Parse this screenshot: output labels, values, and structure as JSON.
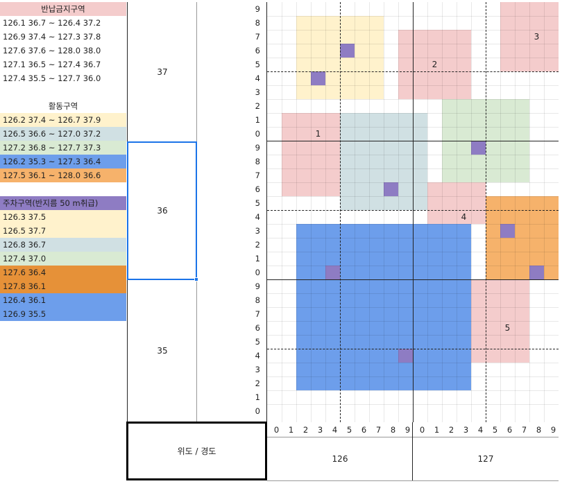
{
  "colors": {
    "forbidden_bg": "#f4cccc",
    "activity_1": "#fff2cc",
    "activity_2": "#d0e0e3",
    "activity_3": "#d9ead3",
    "activity_4": "#6d9eeb",
    "activity_5": "#f6b26b",
    "parking_header": "#8e7cc3",
    "parking_orange": "#e69138",
    "parking_blue": "#6d9eeb"
  },
  "sidebar": {
    "forbidden": {
      "header": "반납금지구역",
      "items": [
        "126.1 36.7 ~ 126.4 37.2",
        "126.9 37.4 ~ 127.3 37.8",
        "127.6 37.6 ~ 128.0 38.0",
        "127.1 36.5 ~ 127.4 36.7",
        "127.4 35.5 ~ 127.7 36.0"
      ]
    },
    "activity": {
      "header": "활동구역",
      "items": [
        "126.2 37.4 ~ 126.7 37.9",
        "126.5 36.6 ~ 127.0 37.2",
        "127.2 36.8 ~ 127.7 37.3",
        "126.2 35.3 ~ 127.3 36.4",
        "127.5 36.1 ~ 128.0 36.6"
      ]
    },
    "parking": {
      "header": "주차구역(반지름 50 m취급)",
      "items": [
        "126.3 37.5",
        "126.5 37.7",
        "126.8 36.7",
        "127.4 37.0",
        "127.6 36.4",
        "127.8 36.1",
        "126.4 36.1",
        "126.9 35.5"
      ]
    }
  },
  "grid": {
    "lat_degrees": [
      "37",
      "36",
      "35"
    ],
    "lat_minor": [
      "9",
      "8",
      "7",
      "6",
      "5",
      "4",
      "3",
      "2",
      "1",
      "0"
    ],
    "lon_minor": [
      "0",
      "1",
      "2",
      "3",
      "4",
      "5",
      "6",
      "7",
      "8",
      "9"
    ],
    "lon_degrees": [
      "126",
      "127"
    ],
    "corner_label": "위도 / 경도",
    "zone_labels": [
      "1",
      "2",
      "3",
      "4",
      "5"
    ]
  }
}
